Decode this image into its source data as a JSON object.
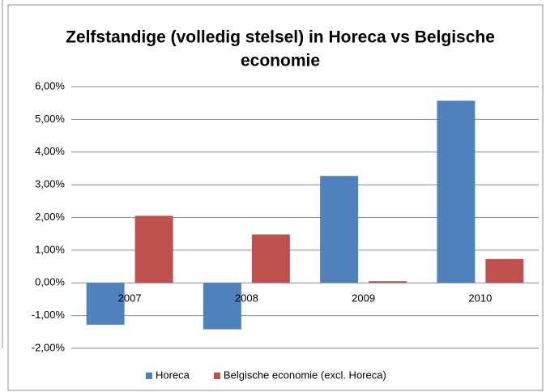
{
  "chart_data": {
    "type": "bar",
    "title": [
      "Zelfstandige (volledig stelsel) in Horeca vs Belgische",
      "economie"
    ],
    "categories": [
      "2007",
      "2008",
      "2009",
      "2010"
    ],
    "series": [
      {
        "name": "Horeca",
        "color": "#4f81bd",
        "values": [
          -1.28,
          -1.42,
          3.27,
          5.57
        ]
      },
      {
        "name": "Belgische economie (excl. Horeca)",
        "color": "#c0504d",
        "values": [
          2.05,
          1.48,
          0.05,
          0.73
        ]
      }
    ],
    "ylim": [
      -2,
      6
    ],
    "yticks": [
      {
        "value": -2,
        "label": "-2,00%"
      },
      {
        "value": -1,
        "label": "-1,00%"
      },
      {
        "value": 0,
        "label": "0,00%"
      },
      {
        "value": 1,
        "label": "1,00%"
      },
      {
        "value": 2,
        "label": "2,00%"
      },
      {
        "value": 3,
        "label": "3,00%"
      },
      {
        "value": 4,
        "label": "4,00%"
      },
      {
        "value": 5,
        "label": "5,00%"
      },
      {
        "value": 6,
        "label": "6,00%"
      }
    ],
    "grid": true,
    "legend": "bottom"
  }
}
